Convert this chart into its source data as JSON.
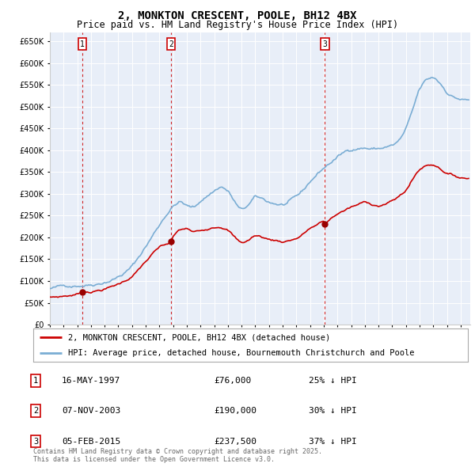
{
  "title": "2, MONKTON CRESCENT, POOLE, BH12 4BX",
  "subtitle": "Price paid vs. HM Land Registry's House Price Index (HPI)",
  "ylim": [
    0,
    670000
  ],
  "yticks": [
    0,
    50000,
    100000,
    150000,
    200000,
    250000,
    300000,
    350000,
    400000,
    450000,
    500000,
    550000,
    600000,
    650000
  ],
  "xlim_start": 1995.0,
  "xlim_end": 2025.7,
  "background_color": "#ffffff",
  "plot_bg_color": "#e8eef8",
  "grid_color": "#ffffff",
  "hpi_color": "#7aadd4",
  "price_color": "#cc0000",
  "sale_marker_color": "#cc0000",
  "legend_house": "2, MONKTON CRESCENT, POOLE, BH12 4BX (detached house)",
  "legend_hpi": "HPI: Average price, detached house, Bournemouth Christchurch and Poole",
  "sales": [
    {
      "label": "1",
      "date_num": 1997.37,
      "price": 76000,
      "date_str": "16-MAY-1997",
      "pct": "25%",
      "dir": "↓"
    },
    {
      "label": "2",
      "date_num": 2003.85,
      "price": 190000,
      "date_str": "07-NOV-2003",
      "pct": "30%",
      "dir": "↓"
    },
    {
      "label": "3",
      "date_num": 2015.09,
      "price": 237500,
      "date_str": "05-FEB-2015",
      "pct": "37%",
      "dir": "↓"
    }
  ],
  "footer": "Contains HM Land Registry data © Crown copyright and database right 2025.\nThis data is licensed under the Open Government Licence v3.0.",
  "title_fontsize": 10,
  "subtitle_fontsize": 8.5,
  "tick_fontsize": 7,
  "legend_fontsize": 7.5,
  "table_fontsize": 8
}
